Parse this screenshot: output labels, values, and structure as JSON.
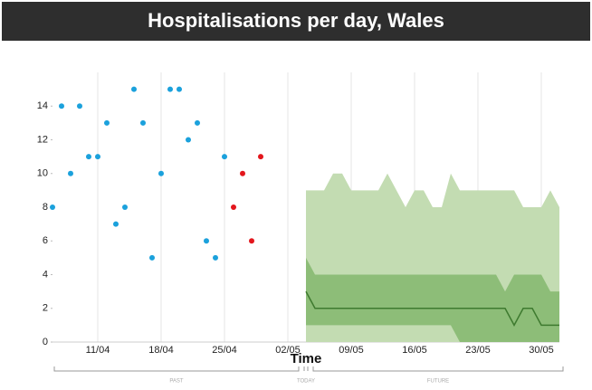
{
  "chart_data": {
    "type": "scatter",
    "title": "Hospitalisations per day, Wales",
    "x_label": "Time",
    "period_labels": [
      "PAST",
      "TODAY",
      "FUTURE"
    ],
    "xlim": [
      "06/04",
      "01/06"
    ],
    "xticks": [
      "11/04",
      "18/04",
      "25/04",
      "02/05",
      "09/05",
      "16/05",
      "23/05",
      "30/05"
    ],
    "ylim": [
      0,
      16
    ],
    "yticks": [
      0,
      2,
      4,
      6,
      8,
      10,
      12,
      14
    ],
    "grid": true,
    "series": [
      {
        "color": "#1ba1dc",
        "x": [
          "06/04",
          "07/04",
          "08/04",
          "09/04",
          "10/04",
          "11/04",
          "12/04",
          "13/04",
          "14/04",
          "15/04",
          "16/04",
          "17/04",
          "18/04",
          "19/04",
          "20/04",
          "21/04",
          "22/04",
          "23/04",
          "24/04",
          "25/04"
        ],
        "values": [
          8,
          14,
          10,
          14,
          11,
          11,
          13,
          7,
          8,
          15,
          13,
          5,
          10,
          15,
          15,
          12,
          13,
          6,
          5,
          11
        ]
      },
      {
        "color": "#e3161c",
        "x": [
          "26/04",
          "27/04",
          "28/04",
          "29/04"
        ],
        "values": [
          8,
          10,
          6,
          11
        ]
      }
    ],
    "forecast": {
      "x": [
        "04/05",
        "05/05",
        "06/05",
        "07/05",
        "08/05",
        "09/05",
        "10/05",
        "11/05",
        "12/05",
        "13/05",
        "14/05",
        "15/05",
        "16/05",
        "17/05",
        "18/05",
        "19/05",
        "20/05",
        "21/05",
        "22/05",
        "23/05",
        "24/05",
        "25/05",
        "26/05",
        "27/05",
        "28/05",
        "29/05",
        "30/05",
        "31/05",
        "01/06"
      ],
      "outer_color": "#c3dcb2",
      "inner_color": "#8dbd78",
      "median_color": "#3e7a2f",
      "outer_upper": [
        9,
        9,
        9,
        10,
        10,
        9,
        9,
        9,
        9,
        10,
        9,
        8,
        9,
        9,
        8,
        8,
        10,
        9,
        9,
        9,
        9,
        9,
        9,
        9,
        8,
        8,
        8,
        9,
        8
      ],
      "outer_lower": [
        0,
        0,
        0,
        0,
        0,
        0,
        0,
        0,
        0,
        0,
        0,
        0,
        0,
        0,
        0,
        0,
        0,
        0,
        0,
        0,
        0,
        0,
        0,
        0,
        0,
        0,
        0,
        0,
        0
      ],
      "inner_upper": [
        5,
        4,
        4,
        4,
        4,
        4,
        4,
        4,
        4,
        4,
        4,
        4,
        4,
        4,
        4,
        4,
        4,
        4,
        4,
        4,
        4,
        4,
        3,
        4,
        4,
        4,
        4,
        3,
        3
      ],
      "inner_lower": [
        1,
        1,
        1,
        1,
        1,
        1,
        1,
        1,
        1,
        1,
        1,
        1,
        1,
        1,
        1,
        1,
        1,
        0,
        0,
        0,
        0,
        0,
        0,
        0,
        0,
        0,
        0,
        0,
        0
      ],
      "median": [
        3,
        2,
        2,
        2,
        2,
        2,
        2,
        2,
        2,
        2,
        2,
        2,
        2,
        2,
        2,
        2,
        2,
        2,
        2,
        2,
        2,
        2,
        2,
        1,
        2,
        2,
        1,
        1,
        1
      ]
    }
  }
}
